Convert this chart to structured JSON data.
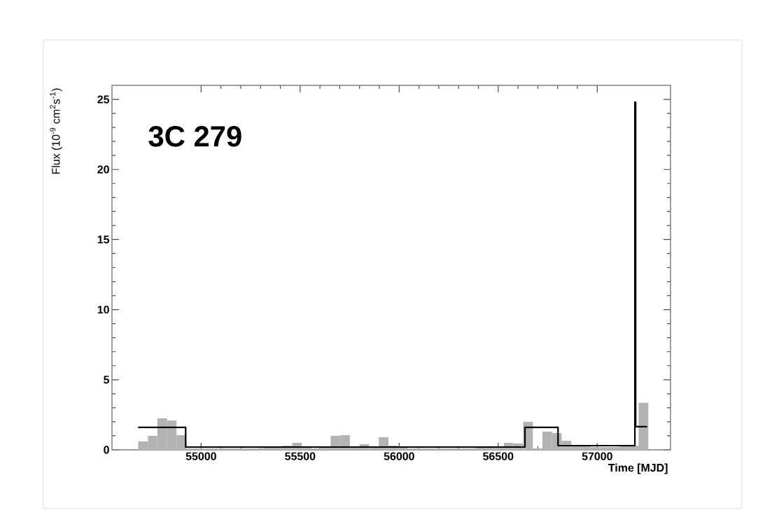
{
  "chart_data": {
    "type": "histogram",
    "title": "3C 279",
    "xlabel": "Time [MJD]",
    "ylabel": "Flux (10$^{-9}$ cm$^{2}$s$^{-1}$)",
    "xlim": [
      54550,
      57370
    ],
    "ylim": [
      0,
      26
    ],
    "xticks": [
      55000,
      55500,
      56000,
      56500,
      57000
    ],
    "yticks": [
      0,
      5,
      10,
      15,
      20,
      25
    ],
    "grid": false,
    "series": [
      {
        "color": "#b3b3b3",
        "bins": [
          54682,
          54731,
          54779,
          54828,
          54876,
          54925,
          54974,
          55022,
          55071,
          55119,
          55168,
          55217,
          55265,
          55314,
          55362,
          55411,
          55460,
          55508,
          55557,
          55605,
          55654,
          55703,
          55751,
          55800,
          55848,
          55897,
          55946,
          55994,
          56043,
          56091,
          56140,
          56189,
          56237,
          56286,
          56334,
          56383,
          56432,
          56480,
          56529,
          56577,
          56626,
          56675,
          56723,
          56772,
          56820,
          56869,
          56918,
          56966,
          57015,
          57063,
          57112,
          57161,
          57209,
          57258
        ],
        "values": [
          0.6,
          1.0,
          2.25,
          2.1,
          1.05,
          0.1,
          0.1,
          0.1,
          0.1,
          0.1,
          0.1,
          0.1,
          0.1,
          0.15,
          0.2,
          0.3,
          0.5,
          0.15,
          0.1,
          0.2,
          1.0,
          1.05,
          0.2,
          0.4,
          0.2,
          0.9,
          0.3,
          0.15,
          0.1,
          0.1,
          0.1,
          0.1,
          0.1,
          0.1,
          0.1,
          0.15,
          0.2,
          0.2,
          0.5,
          0.45,
          2.0,
          0.1,
          1.3,
          1.2,
          0.65,
          0.3,
          0.25,
          0.2,
          0.2,
          0.2,
          0.25,
          0.3,
          3.35
        ]
      },
      {
        "type": "step",
        "color": "#000000",
        "x": [
          54682,
          54922,
          56635,
          56802,
          57190,
          57194,
          57252
        ],
        "values": [
          1.6,
          0.2,
          1.6,
          0.3,
          24.8,
          1.65,
          1.65
        ]
      }
    ]
  }
}
